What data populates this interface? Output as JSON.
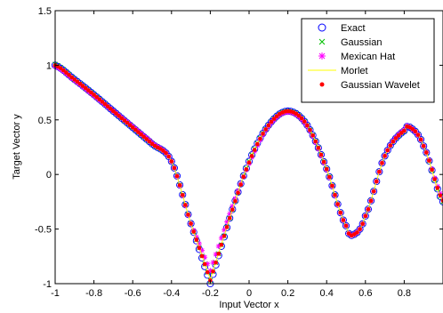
{
  "chart_data": {
    "type": "scatter",
    "xlabel": "Input Vector x",
    "ylabel": "Target Vector y",
    "xlim": [
      -1,
      1
    ],
    "ylim": [
      -1,
      1.5
    ],
    "xticks": [
      -1,
      -0.8,
      -0.6,
      -0.4,
      -0.2,
      0,
      0.2,
      0.4,
      0.6,
      0.8
    ],
    "xtick_labels": [
      "-1",
      "-0.8",
      "-0.6",
      "-0.4",
      "-0.2",
      "0",
      "0.2",
      "0.4",
      "0.6",
      "0.8"
    ],
    "yticks": [
      -1,
      -0.5,
      0,
      0.5,
      1,
      1.5
    ],
    "ytick_labels": [
      "-1",
      "-0.5",
      "0",
      "0.5",
      "1",
      "1.5"
    ],
    "grid": false,
    "legend_position": "top-right",
    "x": [
      -1.0,
      -0.9,
      -0.8,
      -0.7,
      -0.6,
      -0.5,
      -0.4,
      -0.3,
      -0.2,
      -0.1,
      0.0,
      0.1,
      0.2,
      0.3,
      0.4,
      0.5,
      0.54,
      0.6,
      0.7,
      0.8,
      0.83,
      0.9,
      1.0
    ],
    "series": [
      {
        "name": "Exact",
        "marker": "open-circle",
        "color": "#0000ff",
        "values": [
          1.0,
          0.87,
          0.73,
          0.58,
          0.43,
          0.28,
          0.12,
          -0.45,
          -1.0,
          -0.4,
          0.12,
          0.45,
          0.58,
          0.45,
          0.05,
          -0.47,
          -0.55,
          -0.38,
          0.17,
          0.4,
          0.43,
          0.26,
          -0.25
        ]
      },
      {
        "name": "Gaussian",
        "marker": "x",
        "color": "#00c000",
        "values": [
          1.01,
          0.87,
          0.73,
          0.58,
          0.43,
          0.28,
          0.12,
          -0.45,
          -0.97,
          -0.4,
          0.12,
          0.45,
          0.58,
          0.45,
          0.05,
          -0.47,
          -0.55,
          -0.38,
          0.17,
          0.4,
          0.43,
          0.26,
          -0.25
        ]
      },
      {
        "name": "Mexican Hat",
        "marker": "star",
        "color": "#ff00ff",
        "values": [
          0.99,
          0.86,
          0.72,
          0.58,
          0.44,
          0.29,
          0.12,
          -0.45,
          -0.88,
          -0.36,
          0.1,
          0.44,
          0.57,
          0.44,
          0.04,
          -0.47,
          -0.55,
          -0.38,
          0.17,
          0.41,
          0.43,
          0.26,
          -0.22
        ]
      },
      {
        "name": "Morlet",
        "marker": "line",
        "color": "#ffff00",
        "values": [
          1.0,
          0.87,
          0.73,
          0.58,
          0.43,
          0.28,
          0.12,
          -0.45,
          -0.96,
          -0.4,
          0.12,
          0.45,
          0.58,
          0.45,
          0.05,
          -0.47,
          -0.55,
          -0.38,
          0.17,
          0.4,
          0.43,
          0.26,
          -0.25
        ]
      },
      {
        "name": "Gaussian Wavelet",
        "marker": "dot",
        "color": "#ff0000",
        "values": [
          1.0,
          0.87,
          0.73,
          0.58,
          0.43,
          0.28,
          0.12,
          -0.45,
          -0.97,
          -0.4,
          0.11,
          0.45,
          0.58,
          0.45,
          0.05,
          -0.47,
          -0.55,
          -0.38,
          0.17,
          0.4,
          0.43,
          0.26,
          -0.24
        ]
      }
    ]
  }
}
